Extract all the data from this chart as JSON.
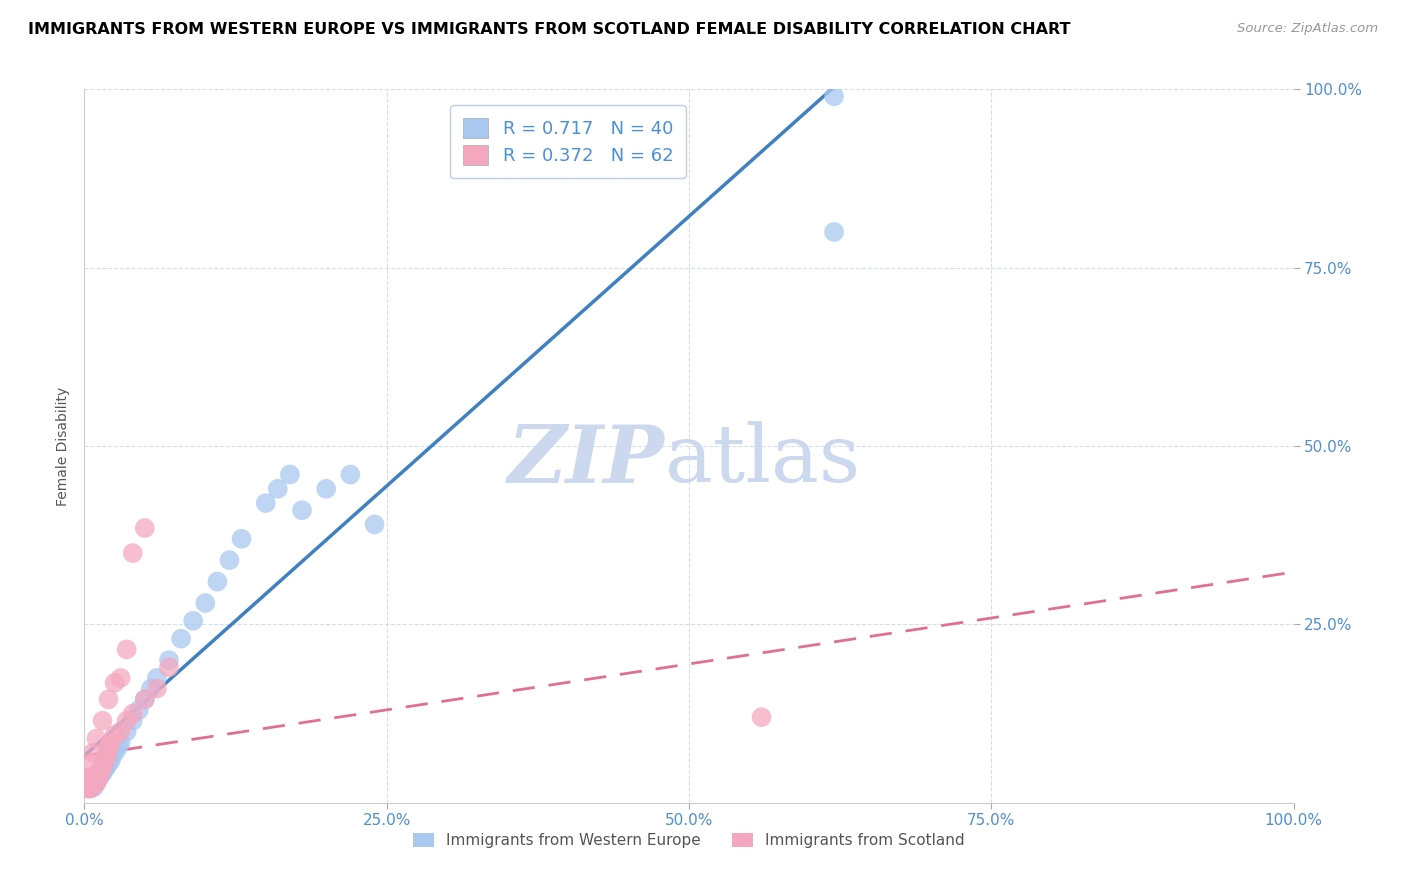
{
  "title": "IMMIGRANTS FROM WESTERN EUROPE VS IMMIGRANTS FROM SCOTLAND FEMALE DISABILITY CORRELATION CHART",
  "source": "Source: ZipAtlas.com",
  "ylabel": "Female Disability",
  "xlim": [
    0,
    1.0
  ],
  "ylim": [
    0,
    1.0
  ],
  "xtick_vals": [
    0.0,
    0.25,
    0.5,
    0.75,
    1.0
  ],
  "xtick_labels": [
    "0.0%",
    "25.0%",
    "50.0%",
    "75.0%",
    "100.0%"
  ],
  "ytick_vals": [
    0.25,
    0.5,
    0.75,
    1.0
  ],
  "ytick_labels": [
    "25.0%",
    "50.0%",
    "75.0%",
    "100.0%"
  ],
  "blue_R": 0.717,
  "blue_N": 40,
  "pink_R": 0.372,
  "pink_N": 62,
  "blue_color": "#a8c8f0",
  "pink_color": "#f4a8bf",
  "blue_line_color": "#4080c0",
  "pink_line_color": "#e07090",
  "watermark_color": "#ccd8ee",
  "title_fontsize": 11.5,
  "legend_label_blue": "Immigrants from Western Europe",
  "legend_label_pink": "Immigrants from Scotland",
  "blue_x": [
    0.005,
    0.007,
    0.008,
    0.009,
    0.01,
    0.011,
    0.012,
    0.013,
    0.014,
    0.015,
    0.016,
    0.017,
    0.018,
    0.02,
    0.022,
    0.025,
    0.028,
    0.03,
    0.035,
    0.04,
    0.045,
    0.05,
    0.055,
    0.06,
    0.07,
    0.08,
    0.09,
    0.1,
    0.11,
    0.12,
    0.13,
    0.15,
    0.16,
    0.17,
    0.18,
    0.2,
    0.22,
    0.24,
    0.62,
    0.62
  ],
  "blue_y": [
    0.02,
    0.025,
    0.022,
    0.028,
    0.03,
    0.032,
    0.035,
    0.038,
    0.04,
    0.042,
    0.045,
    0.048,
    0.05,
    0.055,
    0.06,
    0.07,
    0.078,
    0.085,
    0.1,
    0.115,
    0.13,
    0.145,
    0.16,
    0.175,
    0.2,
    0.23,
    0.255,
    0.28,
    0.31,
    0.34,
    0.37,
    0.42,
    0.44,
    0.46,
    0.41,
    0.44,
    0.46,
    0.39,
    0.8,
    0.99
  ],
  "pink_x": [
    0.0,
    0.001,
    0.002,
    0.002,
    0.003,
    0.003,
    0.003,
    0.004,
    0.004,
    0.004,
    0.005,
    0.005,
    0.005,
    0.005,
    0.006,
    0.006,
    0.006,
    0.007,
    0.007,
    0.007,
    0.008,
    0.008,
    0.008,
    0.009,
    0.009,
    0.01,
    0.01,
    0.01,
    0.011,
    0.011,
    0.012,
    0.012,
    0.013,
    0.013,
    0.014,
    0.015,
    0.016,
    0.017,
    0.018,
    0.019,
    0.02,
    0.02,
    0.022,
    0.025,
    0.03,
    0.035,
    0.04,
    0.05,
    0.06,
    0.07,
    0.003,
    0.005,
    0.007,
    0.01,
    0.015,
    0.02,
    0.025,
    0.03,
    0.035,
    0.56,
    0.04,
    0.05
  ],
  "pink_y": [
    0.02,
    0.022,
    0.024,
    0.026,
    0.02,
    0.025,
    0.03,
    0.022,
    0.028,
    0.032,
    0.02,
    0.025,
    0.03,
    0.035,
    0.022,
    0.028,
    0.032,
    0.025,
    0.03,
    0.035,
    0.028,
    0.032,
    0.038,
    0.03,
    0.035,
    0.028,
    0.032,
    0.038,
    0.035,
    0.04,
    0.035,
    0.04,
    0.042,
    0.045,
    0.048,
    0.05,
    0.055,
    0.06,
    0.065,
    0.07,
    0.075,
    0.08,
    0.085,
    0.095,
    0.1,
    0.115,
    0.125,
    0.145,
    0.16,
    0.19,
    0.035,
    0.055,
    0.07,
    0.09,
    0.115,
    0.145,
    0.168,
    0.175,
    0.215,
    0.12,
    0.35,
    0.385
  ]
}
